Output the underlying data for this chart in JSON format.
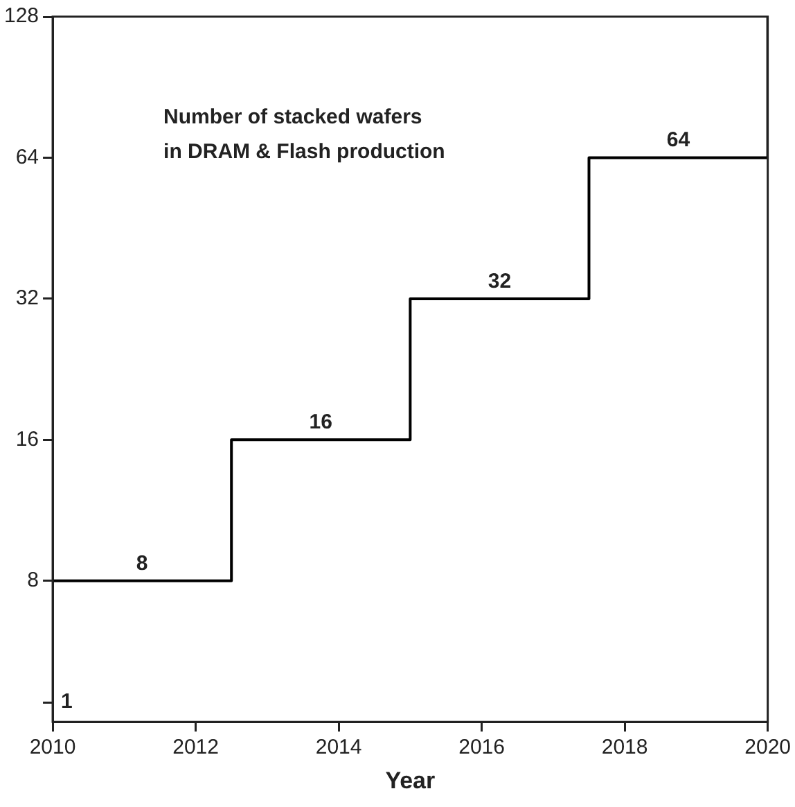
{
  "chart_data": {
    "type": "step",
    "xlabel": "Year",
    "x": [
      2010,
      2011.25,
      2013.75,
      2016.25,
      2018.75,
      2020,
      2020
    ],
    "series": [
      {
        "color": "#000000",
        "values": [
          8,
          8,
          16,
          32,
          64,
          64,
          128
        ],
        "value_labels": [
          null,
          "8",
          "16",
          "32",
          "64",
          null,
          null
        ]
      }
    ],
    "log": "y",
    "xlim": [
      2010,
      2020
    ],
    "xticks": [
      2010,
      2012,
      2014,
      2016,
      2018,
      2020
    ],
    "ylim": [
      4,
      128
    ],
    "yticks": [
      {
        "value": 4.4,
        "label": null
      },
      8,
      16,
      32,
      64,
      128
    ],
    "grid": false,
    "legend": false,
    "marker": "none",
    "line_style": "solid",
    "annotations": [
      "Number of stacked wafers\nin DRAM & Flash production",
      "1"
    ]
  }
}
